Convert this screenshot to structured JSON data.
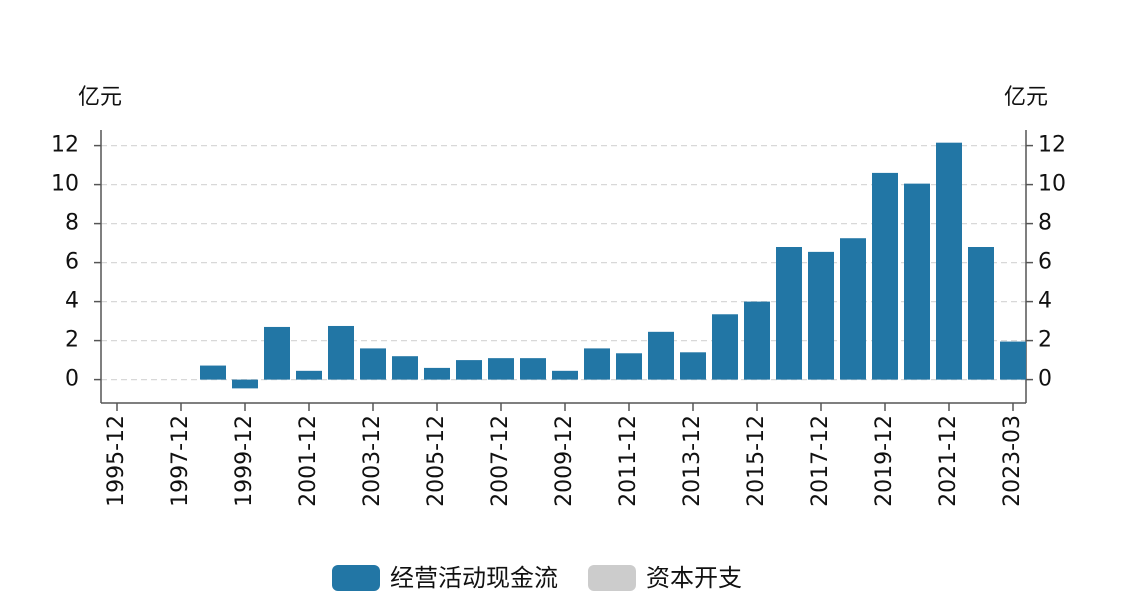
{
  "chart_data": {
    "type": "bar",
    "ylabel": "亿元",
    "y2label": "亿元",
    "categories": [
      "1995-12",
      null,
      "1997-12",
      null,
      "1999-12",
      null,
      "2001-12",
      null,
      "2003-12",
      null,
      "2005-12",
      null,
      "2007-12",
      null,
      "2009-12",
      null,
      "2011-12",
      null,
      "2013-12",
      null,
      "2015-12",
      null,
      "2017-12",
      null,
      "2019-12",
      null,
      "2021-12",
      null,
      "2023-03"
    ],
    "series": [
      {
        "name": "经营活动现金流",
        "color": "#2276a5",
        "values": [
          null,
          null,
          null,
          0.72,
          -0.45,
          2.7,
          0.45,
          2.75,
          1.6,
          1.2,
          0.6,
          1.0,
          1.1,
          1.1,
          0.45,
          1.6,
          1.35,
          2.45,
          1.4,
          3.35,
          4.0,
          6.8,
          6.55,
          7.25,
          10.6,
          10.05,
          12.15,
          6.8,
          1.95
        ]
      }
    ],
    "legend_inactive": [
      {
        "name": "资本开支",
        "color": "#cccccc"
      }
    ],
    "ylim": [
      -1.2,
      12.8
    ],
    "yticks": [
      0,
      2,
      4,
      6,
      8,
      10,
      12
    ],
    "y2lim": [
      -1.2,
      12.8
    ],
    "y2ticks": [
      0,
      2,
      4,
      6,
      8,
      10,
      12
    ],
    "grid": true
  }
}
